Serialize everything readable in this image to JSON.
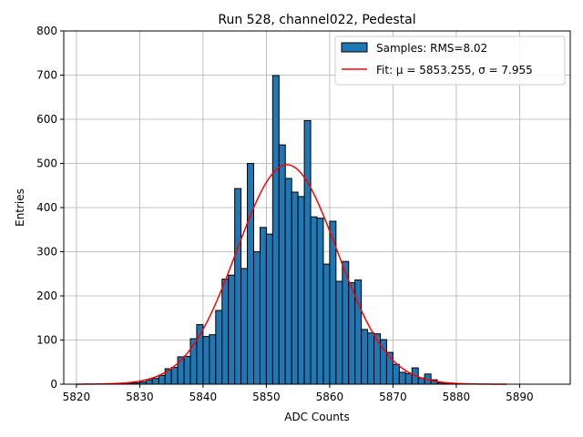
{
  "chart_data": {
    "type": "bar",
    "title": "Run 528, channel022, Pedestal",
    "xlabel": "ADC Counts",
    "ylabel": "Entries",
    "xlim": [
      5818,
      5898
    ],
    "ylim": [
      0,
      800
    ],
    "xticks": [
      5820,
      5830,
      5840,
      5850,
      5860,
      5870,
      5880,
      5890
    ],
    "yticks": [
      0,
      100,
      200,
      300,
      400,
      500,
      600,
      700,
      800
    ],
    "grid": true,
    "legend_position": "top-right",
    "legend": {
      "hist_label": "Samples: RMS=8.02",
      "fit_label": "Fit: μ = 5853.255, σ = 7.955"
    },
    "histogram": {
      "bin_width": 1,
      "bin_starts": [
        5825,
        5826,
        5827,
        5828,
        5829,
        5830,
        5831,
        5832,
        5833,
        5834,
        5835,
        5836,
        5837,
        5838,
        5839,
        5840,
        5841,
        5842,
        5843,
        5844,
        5845,
        5846,
        5847,
        5848,
        5849,
        5850,
        5851,
        5852,
        5853,
        5854,
        5855,
        5856,
        5857,
        5858,
        5859,
        5860,
        5861,
        5862,
        5863,
        5864,
        5865,
        5866,
        5867,
        5868,
        5869,
        5870,
        5871,
        5872,
        5873,
        5874,
        5875,
        5876,
        5877,
        5878,
        5879
      ],
      "counts": [
        1,
        0,
        1,
        2,
        3,
        5,
        10,
        13,
        20,
        35,
        38,
        62,
        63,
        103,
        135,
        108,
        112,
        167,
        238,
        247,
        443,
        262,
        500,
        300,
        355,
        340,
        699,
        542,
        466,
        435,
        425,
        597,
        379,
        376,
        272,
        369,
        233,
        278,
        230,
        236,
        124,
        116,
        114,
        101,
        72,
        45,
        27,
        24,
        37,
        14,
        23,
        10,
        3,
        1,
        1
      ],
      "fill_color": "#1f77b4",
      "edge_color": "#000000"
    },
    "fit": {
      "mu": 5853.255,
      "sigma": 7.955,
      "amplitude": 497,
      "x_range": [
        5820,
        5888
      ],
      "color": "#ff0000"
    }
  }
}
